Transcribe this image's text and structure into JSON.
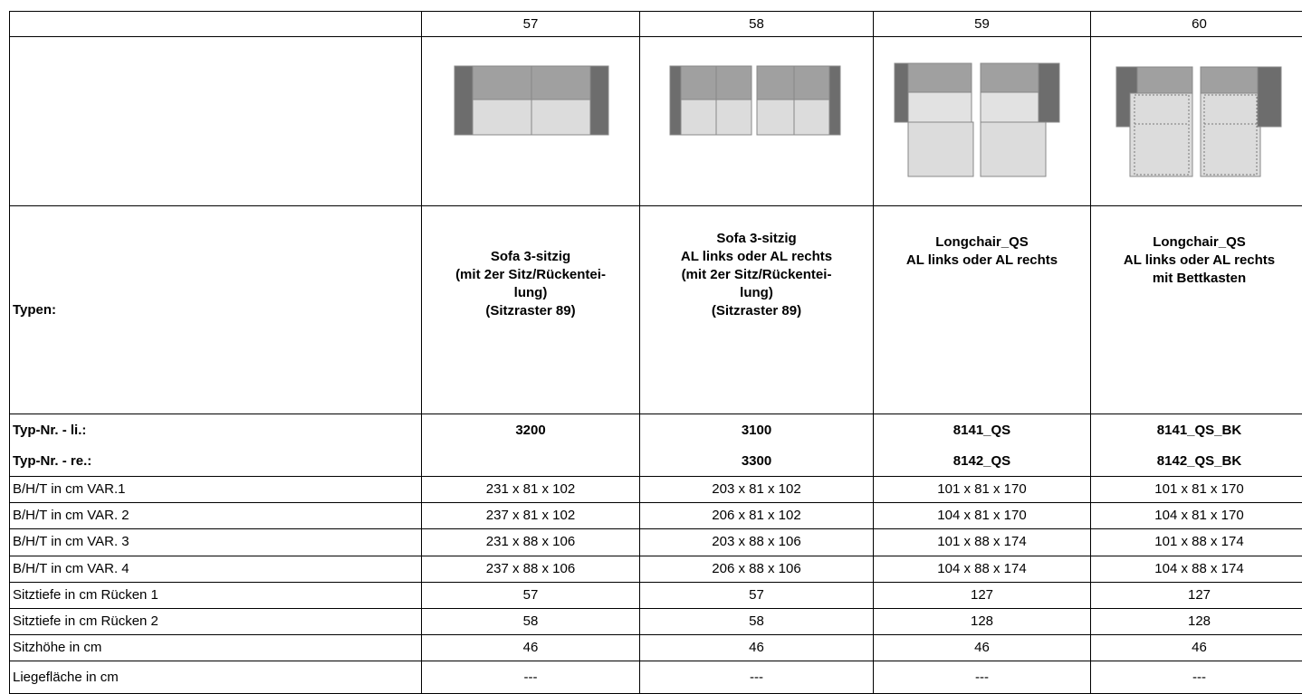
{
  "table": {
    "header": [
      "57",
      "58",
      "59",
      "60"
    ],
    "types": {
      "label": "Typen:",
      "cells": [
        [
          "Sofa 3-sitzig",
          "(mit 2er Sitz/Rückentei-",
          "lung)",
          "(Sitzraster 89)"
        ],
        [
          "Sofa 3-sitzig",
          "AL links oder AL rechts",
          "(mit 2er Sitz/Rückentei-",
          "lung)",
          "(Sitzraster 89)"
        ],
        [
          "Longchair_QS",
          "AL links oder AL rechts"
        ],
        [
          "Longchair_QS",
          "AL links oder AL rechts",
          "mit Bettkasten"
        ]
      ]
    },
    "type_numbers": [
      {
        "label": "Typ-Nr. - li.:",
        "cells": [
          "3200",
          "3100",
          "8141_QS",
          "8141_QS_BK"
        ]
      },
      {
        "label": "Typ-Nr. - re.:",
        "cells": [
          null,
          "3300",
          "8142_QS",
          "8142_QS_BK"
        ]
      }
    ],
    "rows": [
      {
        "label": "B/H/T in cm VAR.1",
        "cells": [
          "231 x 81 x 102",
          "203 x 81 x 102",
          "101 x 81 x 170",
          "101 x 81 x 170"
        ]
      },
      {
        "label": "B/H/T in cm VAR. 2",
        "cells": [
          "237 x 81 x 102",
          "206 x 81 x 102",
          "104 x 81 x 170",
          "104 x 81 x 170"
        ]
      },
      {
        "label": "B/H/T in cm VAR. 3",
        "cells": [
          "231 x 88 x 106",
          "203 x 88 x 106",
          "101 x 88 x 174",
          "101 x 88 x 174"
        ]
      },
      {
        "label": "B/H/T in cm VAR. 4",
        "cells": [
          "237 x 88 x 106",
          "206 x 88 x 106",
          "104 x 88 x 174",
          "104 x 88 x 174"
        ]
      },
      {
        "label": "Sitztiefe in cm Rücken 1",
        "cells": [
          "57",
          "57",
          "127",
          "127"
        ]
      },
      {
        "label": "Sitztiefe in cm Rücken 2",
        "cells": [
          "58",
          "58",
          "128",
          "128"
        ]
      },
      {
        "label": "Sitzhöhe in cm",
        "cells": [
          "46",
          "46",
          "46",
          "46"
        ]
      },
      {
        "label": "Liegefläche in cm",
        "cells": [
          "---",
          "---",
          "---",
          "---"
        ]
      }
    ]
  }
}
